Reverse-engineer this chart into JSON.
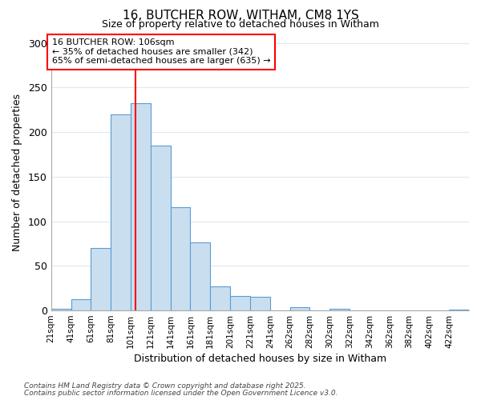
{
  "title": "16, BUTCHER ROW, WITHAM, CM8 1YS",
  "subtitle": "Size of property relative to detached houses in Witham",
  "xlabel": "Distribution of detached houses by size in Witham",
  "ylabel": "Number of detached properties",
  "footnote1": "Contains HM Land Registry data © Crown copyright and database right 2025.",
  "footnote2": "Contains public sector information licensed under the Open Government Licence v3.0.",
  "annotation_title": "16 BUTCHER ROW: 106sqm",
  "annotation_line2": "← 35% of detached houses are smaller (342)",
  "annotation_line3": "65% of semi-detached houses are larger (635) →",
  "bar_categories": [
    "21sqm",
    "41sqm",
    "61sqm",
    "81sqm",
    "101sqm",
    "121sqm",
    "141sqm",
    "161sqm",
    "181sqm",
    "201sqm",
    "221sqm",
    "241sqm",
    "262sqm",
    "282sqm",
    "302sqm",
    "322sqm",
    "342sqm",
    "362sqm",
    "382sqm",
    "402sqm",
    "422sqm"
  ],
  "bar_values": [
    2,
    13,
    70,
    220,
    232,
    185,
    116,
    76,
    27,
    16,
    15,
    0,
    4,
    0,
    2,
    0,
    0,
    0,
    0,
    0,
    1
  ],
  "bar_color": "#c9dff0",
  "bar_edge_color": "#5b9bd5",
  "red_line_x": 106,
  "ylim": [
    0,
    310
  ],
  "yticks": [
    0,
    50,
    100,
    150,
    200,
    250,
    300
  ],
  "background_color": "#ffffff",
  "grid_color": "#e0e8f0"
}
